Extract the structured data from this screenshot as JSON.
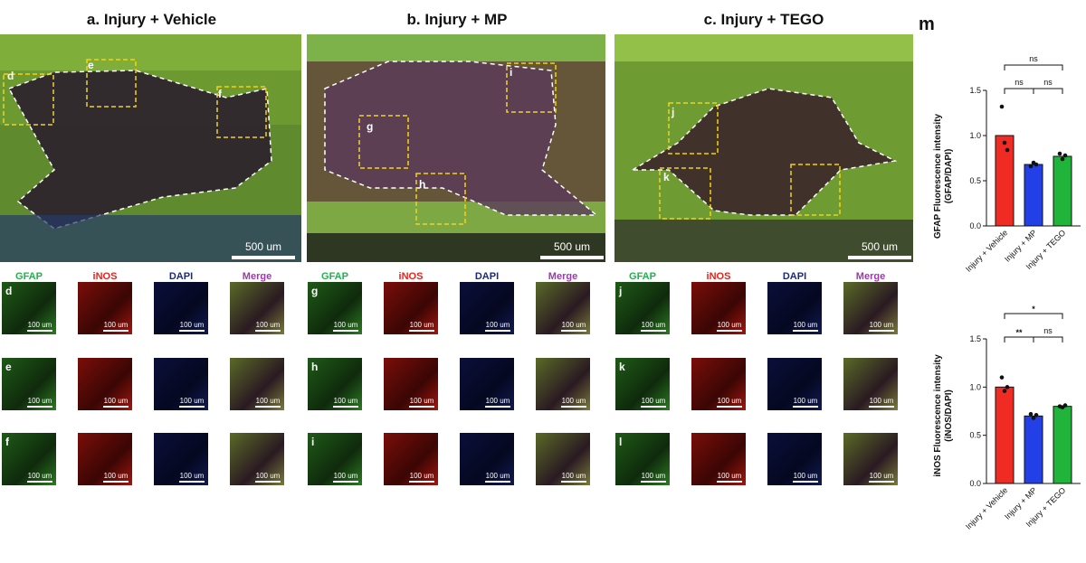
{
  "headers": {
    "a": "a. Injury + Vehicle",
    "b": "b. Injury + MP",
    "c": "c. Injury + TEGO",
    "m": "m"
  },
  "large_images": [
    {
      "id": "a",
      "scalebar": "500 um",
      "boxes": [
        "d",
        "e",
        "f"
      ]
    },
    {
      "id": "b",
      "scalebar": "500 um",
      "boxes": [
        "g",
        "h",
        "i"
      ]
    },
    {
      "id": "c",
      "scalebar": "500 um",
      "boxes": [
        "j",
        "k",
        "l"
      ]
    }
  ],
  "channels": {
    "gfap": "GFAP",
    "inos": "iNOS",
    "dapi": "DAPI",
    "merge": "Merge",
    "colors": {
      "gfap": "#22b24c",
      "inos": "#e8231c",
      "dapi": "#1b2a7a",
      "merge": "#9b3aa8"
    }
  },
  "tile_scalebar": "100 um",
  "tile_rows": [
    "d",
    "e",
    "f",
    "g",
    "h",
    "i",
    "j",
    "k",
    "l"
  ],
  "chart_data": [
    {
      "type": "bar",
      "ylabel": "GFAP Fluorescence intensity\n(GFAP/DAPI)",
      "categories": [
        "Injury + Vehicle",
        "Injury + MP",
        "Injury + TEGO"
      ],
      "values": [
        1.0,
        0.68,
        0.77
      ],
      "points": [
        [
          1.32,
          0.92,
          0.84
        ],
        [
          0.66,
          0.7,
          0.68
        ],
        [
          0.8,
          0.74,
          0.78
        ]
      ],
      "colors": [
        "#ef2b24",
        "#2340e6",
        "#20b43a"
      ],
      "ylim": [
        0,
        1.5
      ],
      "yticks": [
        "0.0",
        "0.5",
        "1.0",
        "1.5"
      ],
      "significance": [
        {
          "pair": [
            0,
            2
          ],
          "label": "ns"
        },
        {
          "pair": [
            0,
            1
          ],
          "label": "ns"
        },
        {
          "pair": [
            1,
            2
          ],
          "label": "ns"
        }
      ]
    },
    {
      "type": "bar",
      "ylabel": "iNOS Fluorescence intensity\n(iNOS/DAPI)",
      "categories": [
        "Injury + Vehicle",
        "Injury + MP",
        "Injury + TEGO"
      ],
      "values": [
        1.0,
        0.7,
        0.8
      ],
      "points": [
        [
          1.1,
          0.96,
          1.0
        ],
        [
          0.72,
          0.68,
          0.71
        ],
        [
          0.8,
          0.79,
          0.81
        ]
      ],
      "colors": [
        "#ef2b24",
        "#2340e6",
        "#20b43a"
      ],
      "ylim": [
        0,
        1.5
      ],
      "yticks": [
        "0.0",
        "0.5",
        "1.0",
        "1.5"
      ],
      "significance": [
        {
          "pair": [
            0,
            2
          ],
          "label": "*"
        },
        {
          "pair": [
            0,
            1
          ],
          "label": "**"
        },
        {
          "pair": [
            1,
            2
          ],
          "label": "ns"
        }
      ]
    }
  ]
}
